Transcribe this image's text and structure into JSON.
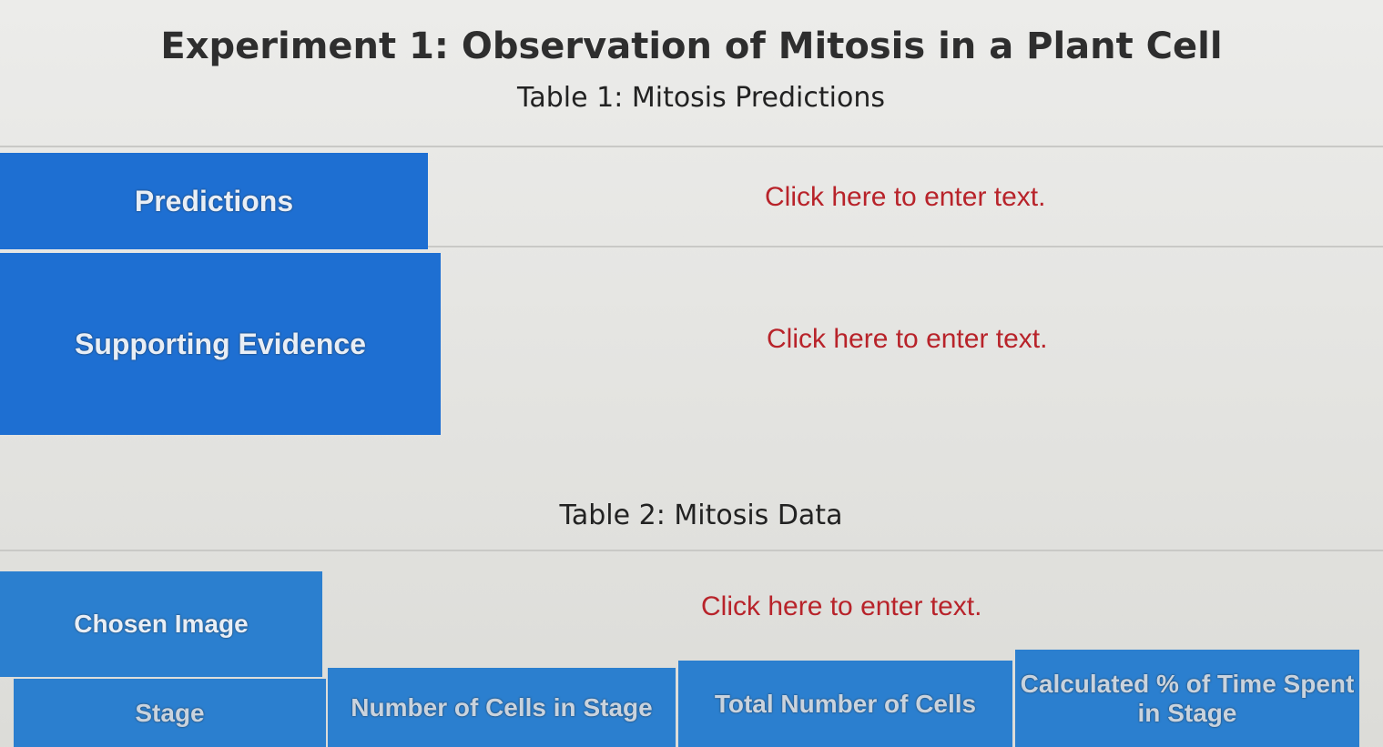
{
  "header": {
    "title": "Experiment 1: Observation of Mitosis in a Plant Cell"
  },
  "table1": {
    "caption": "Table 1: Mitosis Predictions",
    "rows": [
      [
        "Predictions",
        "Click here to enter text."
      ],
      [
        "Supporting Evidence",
        "Click here to enter text."
      ]
    ]
  },
  "table2": {
    "caption": "Table 2: Mitosis Data",
    "rows": [
      [
        "Chosen Image",
        "Click here to enter text."
      ]
    ],
    "columns": [
      "Stage",
      "Number of Cells in Stage",
      "Total Number of Cells",
      "Calculated % of Time Spent in Stage"
    ]
  }
}
